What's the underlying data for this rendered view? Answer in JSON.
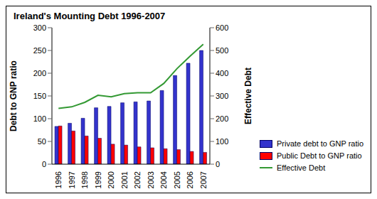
{
  "chart_data": {
    "type": "bar",
    "title": "Ireland's Mounting Debt 1996-2007",
    "categories": [
      "1996",
      "1997",
      "1998",
      "1999",
      "2000",
      "2001",
      "2002",
      "2003",
      "2004",
      "2005",
      "2006",
      "2007"
    ],
    "y_label": "Debt to GNP ratio",
    "y2_label": "Effective Debt",
    "ylim": [
      0,
      300
    ],
    "yticks": [
      0,
      50,
      100,
      150,
      200,
      250,
      300
    ],
    "y2lim": [
      0,
      600
    ],
    "y2ticks": [
      0,
      100,
      200,
      300,
      400,
      500,
      600
    ],
    "legend": "right",
    "series": [
      {
        "name": "Private debt to GNP ratio",
        "type": "bar",
        "color": "#3333cc",
        "values": [
          83,
          90,
          101,
          124,
          127,
          135,
          137,
          139,
          162,
          195,
          222,
          250
        ]
      },
      {
        "name": "Public Debt to GNP ratio",
        "type": "bar",
        "color": "#ff0000",
        "values": [
          84,
          73,
          62,
          57,
          44,
          42,
          38,
          36,
          34,
          32,
          28,
          26
        ]
      },
      {
        "name": "Effective Debt",
        "type": "line",
        "axis": "y2",
        "color": "#339933",
        "values": [
          245,
          252,
          272,
          303,
          296,
          310,
          314,
          314,
          355,
          420,
          475,
          527
        ]
      }
    ]
  }
}
